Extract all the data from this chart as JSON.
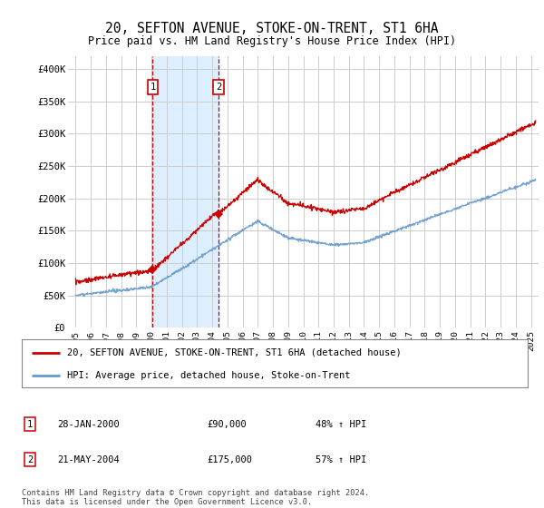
{
  "title": "20, SEFTON AVENUE, STOKE-ON-TRENT, ST1 6HA",
  "subtitle": "Price paid vs. HM Land Registry's House Price Index (HPI)",
  "legend_line1": "20, SEFTON AVENUE, STOKE-ON-TRENT, ST1 6HA (detached house)",
  "legend_line2": "HPI: Average price, detached house, Stoke-on-Trent",
  "sale1_date": "28-JAN-2000",
  "sale1_price": "£90,000",
  "sale1_hpi": "48% ↑ HPI",
  "sale2_date": "21-MAY-2004",
  "sale2_price": "£175,000",
  "sale2_hpi": "57% ↑ HPI",
  "footer": "Contains HM Land Registry data © Crown copyright and database right 2024.\nThis data is licensed under the Open Government Licence v3.0.",
  "red_color": "#cc0000",
  "blue_color": "#6699cc",
  "highlight_color": "#ddeeff",
  "sale1_x": 2000.08,
  "sale2_x": 2004.42,
  "sale1_y": 90000,
  "sale2_y": 175000,
  "ylim_bottom": 0,
  "ylim_top": 420000,
  "xlim_left": 1994.5,
  "xlim_right": 2025.5,
  "yticks": [
    0,
    50000,
    100000,
    150000,
    200000,
    250000,
    300000,
    350000,
    400000
  ],
  "ytick_labels": [
    "£0",
    "£50K",
    "£100K",
    "£150K",
    "£200K",
    "£250K",
    "£300K",
    "£350K",
    "£400K"
  ],
  "xticks": [
    1995,
    1996,
    1997,
    1998,
    1999,
    2000,
    2001,
    2002,
    2003,
    2004,
    2005,
    2006,
    2007,
    2008,
    2009,
    2010,
    2011,
    2012,
    2013,
    2014,
    2015,
    2016,
    2017,
    2018,
    2019,
    2020,
    2021,
    2022,
    2023,
    2024,
    2025
  ]
}
